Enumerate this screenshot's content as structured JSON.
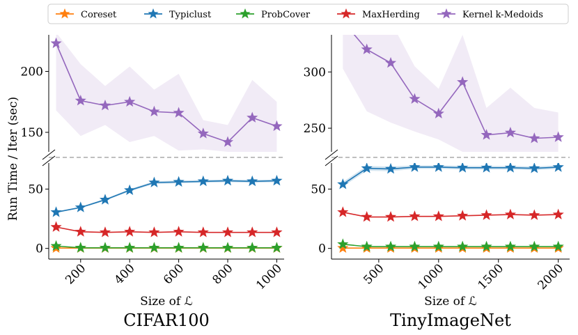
{
  "chart_data": {
    "type": "line",
    "legend": {
      "placement": "top",
      "entries": [
        {
          "name": "Coreset",
          "color": "#ff7f0e"
        },
        {
          "name": "Typiclust",
          "color": "#1f77b4"
        },
        {
          "name": "ProbCover",
          "color": "#2ca02c"
        },
        {
          "name": "MaxHerding",
          "color": "#d62728"
        },
        {
          "name": "Kernel k-Medoids",
          "color": "#9467bd"
        }
      ]
    },
    "ylabel": "Run Time / Iter (sec)",
    "broken_y_axis": true,
    "panels": [
      {
        "title": "CIFAR100",
        "xlabel": "Size of ℒ",
        "xlim": [
          70,
          1030
        ],
        "xticks": [
          200,
          400,
          600,
          800,
          1000
        ],
        "upper_ylim": [
          134,
          230
        ],
        "upper_yticks": [
          150,
          200
        ],
        "lower_ylim": [
          -9,
          72
        ],
        "lower_yticks": [
          0,
          50
        ],
        "x": [
          100,
          200,
          300,
          400,
          500,
          600,
          700,
          800,
          900,
          1000
        ],
        "series": [
          {
            "name": "Coreset",
            "color": "#ff7f0e",
            "values": [
              0.3,
              0.3,
              0.3,
              0.3,
              0.3,
              0.3,
              0.3,
              0.3,
              0.3,
              0.3
            ]
          },
          {
            "name": "Typiclust",
            "color": "#1f77b4",
            "values": [
              30.5,
              34.5,
              41,
              49,
              55.5,
              56,
              56.5,
              57,
              56.5,
              57
            ],
            "band": [
              0.6,
              0.6,
              0.8,
              1,
              1.2,
              1.2,
              1.2,
              1.2,
              1.2,
              1.2
            ]
          },
          {
            "name": "ProbCover",
            "color": "#2ca02c",
            "values": [
              2,
              0.5,
              0.5,
              0.5,
              0.5,
              0.5,
              0.5,
              0.5,
              0.5,
              0.5
            ]
          },
          {
            "name": "MaxHerding",
            "color": "#d62728",
            "values": [
              18,
              14,
              13.5,
              14,
              13.5,
              14,
              13.5,
              13.5,
              13.5,
              13.5
            ]
          },
          {
            "name": "Kernel k-Medoids",
            "color": "#9467bd",
            "values": [
              223,
              176,
              172,
              175,
              167,
              166,
              149,
              142,
              162,
              155
            ],
            "band_low": [
              168,
              147,
              156,
              142,
              147,
              135,
              136,
              134,
              134,
              134
            ],
            "band_high": [
              232,
              206,
              188,
              204,
              185,
              198,
              160,
              156,
              193,
              175
            ]
          }
        ]
      },
      {
        "title": "TinyImageNet",
        "xlabel": "Size of ℒ",
        "xlim": [
          105,
          2095
        ],
        "xticks": [
          500,
          1000,
          1500,
          2000
        ],
        "upper_ylim": [
          229,
          333
        ],
        "upper_yticks": [
          250,
          300
        ],
        "lower_ylim": [
          -9,
          72
        ],
        "lower_yticks": [
          0,
          50
        ],
        "x": [
          200,
          400,
          600,
          800,
          1000,
          1200,
          1400,
          1600,
          1800,
          2000
        ],
        "series": [
          {
            "name": "Coreset",
            "color": "#ff7f0e",
            "values": [
              0.3,
              0.3,
              0.3,
              0.3,
              0.3,
              0.3,
              0.3,
              0.3,
              0.3,
              0.3
            ]
          },
          {
            "name": "Typiclust",
            "color": "#1f77b4",
            "values": [
              54,
              67.5,
              67,
              68.5,
              68.5,
              68,
              68,
              68,
              67.5,
              68.5
            ],
            "band": [
              2,
              2,
              2,
              1.5,
              1.5,
              1.5,
              1.5,
              1.5,
              1.5,
              1.5
            ]
          },
          {
            "name": "ProbCover",
            "color": "#2ca02c",
            "values": [
              3.5,
              1.5,
              1.5,
              1.5,
              1.5,
              1.5,
              1.5,
              1.5,
              1.5,
              1.5
            ]
          },
          {
            "name": "MaxHerding",
            "color": "#d62728",
            "values": [
              30.5,
              26.5,
              26.5,
              27,
              27,
              27.5,
              28,
              28.5,
              28,
              28.5
            ]
          },
          {
            "name": "Kernel k-Medoids",
            "color": "#9467bd",
            "values": [
              345,
              320,
              308,
              276,
              263,
              291,
              244,
              246,
              241,
              242
            ],
            "band_low": [
              303,
              265,
              255,
              247,
              240,
              229,
              229,
              229,
              229,
              229
            ],
            "band_high": [
              380,
              340,
              345,
              305,
              285,
              333,
              268,
              286,
              268,
              264
            ]
          }
        ]
      }
    ]
  }
}
